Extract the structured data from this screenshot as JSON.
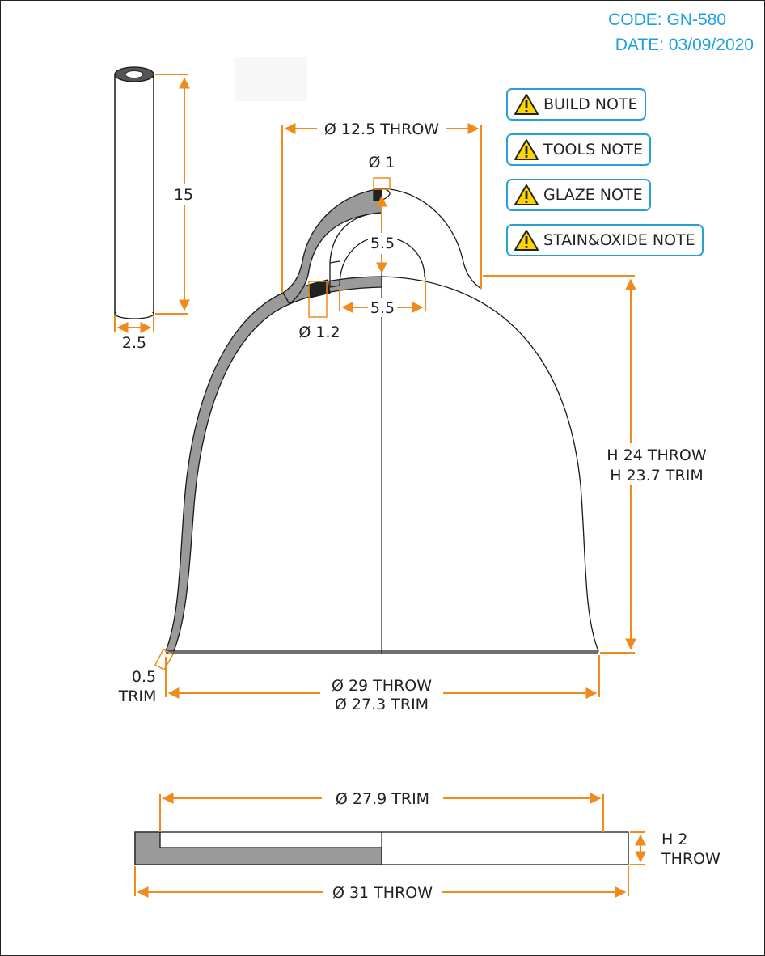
{
  "header": {
    "code": "CODE: GN-580",
    "date": "DATE: 03/09/2020"
  },
  "notes": [
    {
      "label": "BUILD NOTE",
      "icon": "warning-icon"
    },
    {
      "label": "TOOLS NOTE",
      "icon": "warning-icon"
    },
    {
      "label": "GLAZE NOTE",
      "icon": "warning-icon"
    },
    {
      "label": "STAIN&OXIDE NOTE",
      "icon": "warning-icon"
    }
  ],
  "dimensions": {
    "coil_height": "15",
    "coil_width": "2.5",
    "handle_width": "Ø 12.5 THROW",
    "handle_hole": "Ø 1",
    "handle_inner_height": "5.5",
    "handle_inner_width": "5.5",
    "wall_thickness": "Ø 1.2",
    "height_throw": "H 24 THROW",
    "height_trim": "H 23.7 TRIM",
    "rim_thickness": "0.5",
    "rim_thickness_label": "TRIM",
    "base_throw": "Ø 29 THROW",
    "base_trim": "Ø 27.3 TRIM",
    "lid_trim": "Ø 27.9 TRIM",
    "lid_height": "H 2",
    "lid_height_label": "THROW",
    "lid_throw": "Ø 31 THROW"
  },
  "colors": {
    "accent": "#1ea0dc",
    "dimension": "#f08a1c",
    "section_fill": "#9a9a9a",
    "dark_fill": "#222222"
  }
}
